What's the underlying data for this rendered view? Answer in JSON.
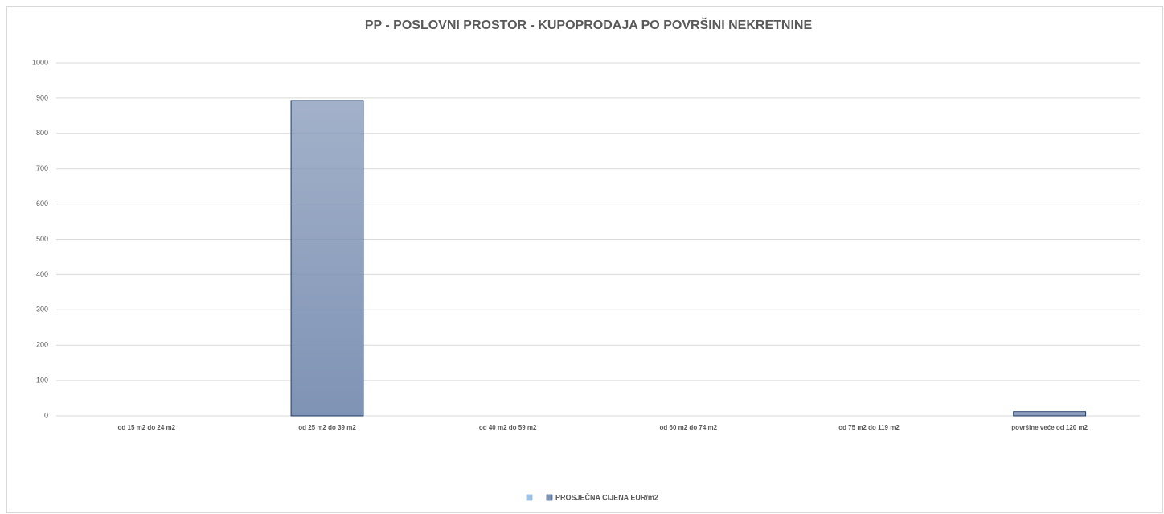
{
  "chart_data": {
    "type": "bar",
    "title": "PP - POSLOVNI PROSTOR - KUPOPRODAJA PO POVRŠINI NEKRETNINE",
    "categories": [
      "od 15 m2 do 24 m2",
      "od 25 m2 do 39 m2",
      "od 40 m2 do 59 m2",
      "od 60 m2 do 74 m2",
      "od 75 m2 do 119 m2",
      "površine veće od 120 m2"
    ],
    "series": [
      {
        "name": "PROSJEČNA CIJENA EUR/m2",
        "color": "#7f93b5",
        "values": [
          null,
          893,
          null,
          null,
          null,
          12
        ]
      }
    ],
    "ylim": [
      0,
      1000
    ],
    "yticks": [
      0,
      100,
      200,
      300,
      400,
      500,
      600,
      700,
      800,
      900,
      1000
    ],
    "grid": true,
    "legend": "bottom"
  }
}
